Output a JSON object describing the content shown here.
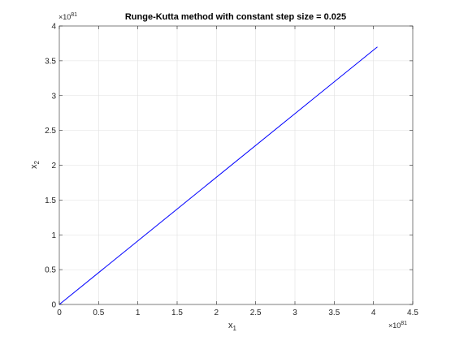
{
  "chart_data": {
    "type": "line",
    "title": "Runge-Kutta method with constant step size = 0.025",
    "xlabel": "x",
    "xlabel_sub": "1",
    "ylabel": "x",
    "ylabel_sub": "2",
    "x_exponent_base": "×10",
    "x_exponent_power": "81",
    "y_exponent_base": "×10",
    "y_exponent_power": "81",
    "xlim": [
      0,
      4.5
    ],
    "ylim": [
      0,
      4
    ],
    "xticks": [
      0,
      0.5,
      1,
      1.5,
      2,
      2.5,
      3,
      3.5,
      4,
      4.5
    ],
    "xtick_labels": [
      "0",
      "0.5",
      "1",
      "1.5",
      "2",
      "2.5",
      "3",
      "3.5",
      "4",
      "4.5"
    ],
    "yticks": [
      0,
      0.5,
      1,
      1.5,
      2,
      2.5,
      3,
      3.5,
      4
    ],
    "ytick_labels": [
      "0",
      "0.5",
      "1",
      "1.5",
      "2",
      "2.5",
      "3",
      "3.5",
      "4"
    ],
    "grid": true,
    "series": [
      {
        "color": "#0000ff",
        "x": [
          0,
          4.05
        ],
        "y": [
          0,
          3.7
        ]
      }
    ]
  }
}
